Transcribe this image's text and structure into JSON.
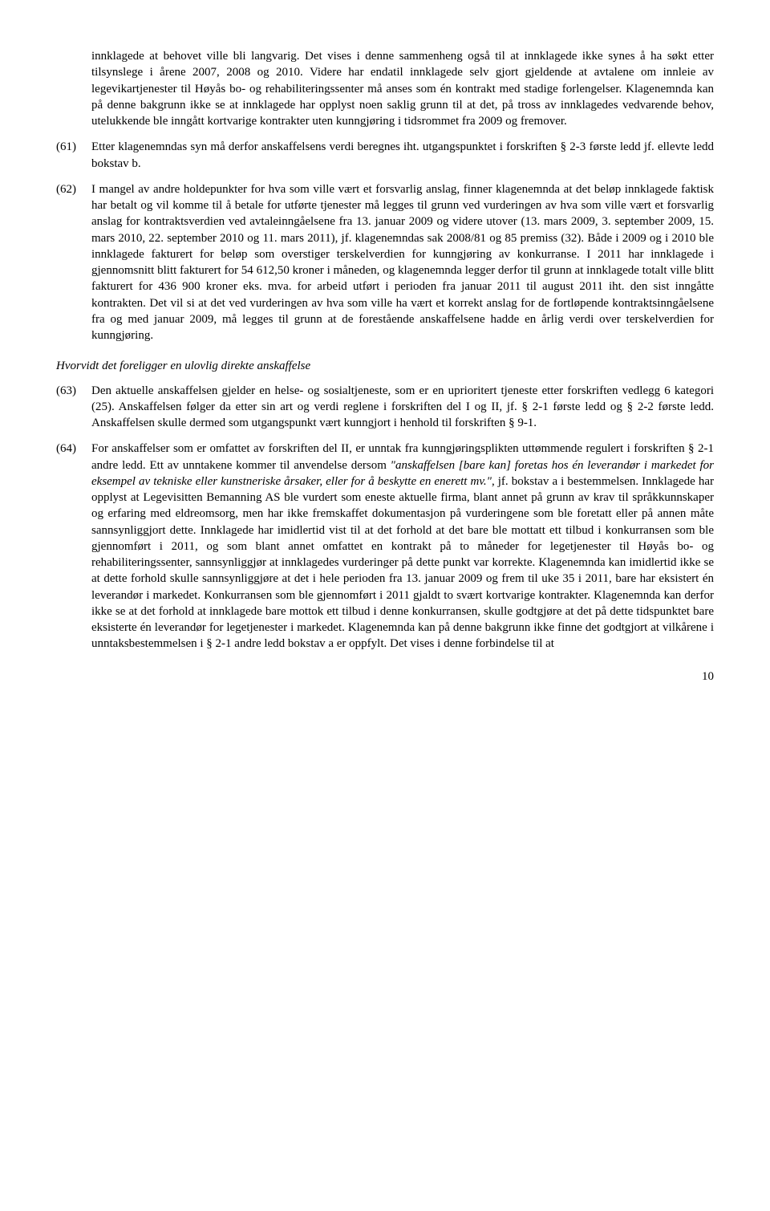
{
  "paras": {
    "p60_cont": "innklagede at behovet ville bli langvarig. Det vises i denne sammenheng også til at innklagede ikke synes å ha søkt etter tilsynslege i årene 2007, 2008 og 2010. Videre har endatil innklagede selv gjort gjeldende at avtalene om innleie av legevikartjenester til Høyås bo- og rehabiliteringssenter må anses som én kontrakt med stadige forlengelser. Klagenemnda kan på denne bakgrunn ikke se at innklagede har opplyst noen saklig grunn til at det, på tross av innklagedes vedvarende behov, utelukkende ble inngått kortvarige kontrakter uten kunngjøring i tidsrommet fra 2009 og fremover.",
    "p61_num": "(61)",
    "p61": "Etter klagenemndas syn må derfor anskaffelsens verdi beregnes iht. utgangspunktet i forskriften § 2-3 første ledd jf. ellevte ledd bokstav b.",
    "p62_num": "(62)",
    "p62": "I mangel av andre holdepunkter for hva som ville vært et forsvarlig anslag, finner klagenemnda at det beløp innklagede faktisk har betalt og vil komme til å betale for utførte tjenester må legges til grunn ved vurderingen av hva som ville vært et forsvarlig anslag for kontraktsverdien ved avtaleinngåelsene fra 13. januar 2009 og videre utover (13. mars 2009, 3. september 2009, 15. mars 2010, 22. september 2010 og 11. mars 2011), jf. klagenemndas sak 2008/81 og 85 premiss (32). Både i 2009 og i 2010 ble innklagede fakturert for beløp som overstiger terskelverdien for kunngjøring av konkurranse. I 2011 har innklagede i gjennomsnitt blitt fakturert for 54 612,50 kroner i måneden, og klagenemnda legger derfor til grunn at innklagede totalt ville blitt fakturert for 436 900 kroner eks. mva. for arbeid utført i perioden fra januar 2011 til august 2011 iht. den sist inngåtte kontrakten. Det vil si at det ved vurderingen av hva som ville ha vært et korrekt anslag for de fortløpende kontraktsinngåelsene fra og med januar 2009, må legges til grunn at de forestående anskaffelsene hadde en årlig verdi over terskelverdien for kunngjøring.",
    "subheading": "Hvorvidt det foreligger en ulovlig direkte anskaffelse",
    "p63_num": "(63)",
    "p63": "Den aktuelle anskaffelsen gjelder en helse- og sosialtjeneste, som er en uprioritert tjeneste etter forskriften vedlegg 6 kategori (25). Anskaffelsen følger da etter sin art og verdi reglene i forskriften del I og II, jf. § 2-1 første ledd og § 2-2 første ledd. Anskaffelsen skulle dermed som utgangspunkt vært kunngjort i henhold til forskriften § 9-1.",
    "p64_num": "(64)",
    "p64_a": "For anskaffelser som er omfattet av forskriften del II, er unntak fra kunngjøringsplikten uttømmende regulert i forskriften § 2-1 andre ledd. Ett av unntakene kommer til anvendelse dersom ",
    "p64_italic": "\"anskaffelsen [bare kan] foretas hos én leverandør i markedet for eksempel av tekniske eller kunstneriske årsaker, eller for å beskytte en enerett mv.\"",
    "p64_b": ", jf. bokstav a i bestemmelsen. Innklagede har opplyst at Legevisitten Bemanning AS ble vurdert som eneste aktuelle firma, blant annet på grunn av krav til språkkunnskaper og erfaring med eldreomsorg, men har ikke fremskaffet dokumentasjon på vurderingene som ble foretatt eller på annen måte sannsynliggjort dette. Innklagede har imidlertid vist til at det forhold at det bare ble mottatt ett tilbud i konkurransen som ble gjennomført i 2011, og som blant annet omfattet en kontrakt på to måneder for legetjenester til Høyås bo- og rehabiliteringssenter, sannsynliggjør at innklagedes vurderinger på dette punkt var korrekte. Klagenemnda kan imidlertid ikke se at dette forhold skulle sannsynliggjøre at det i hele perioden fra 13. januar 2009 og frem til uke 35 i 2011, bare har eksistert én leverandør i markedet. Konkurransen som ble gjennomført i 2011 gjaldt to svært kortvarige kontrakter. Klagenemnda kan derfor ikke se at det forhold at innklagede bare mottok ett tilbud i denne konkurransen, skulle godtgjøre at det på dette tidspunktet bare eksisterte én leverandør for legetjenester i markedet. Klagenemnda kan på denne bakgrunn ikke finne det godtgjort at vilkårene i unntaksbestemmelsen i § 2-1 andre ledd bokstav a er oppfylt. Det vises i denne forbindelse til at"
  },
  "page_number": "10"
}
